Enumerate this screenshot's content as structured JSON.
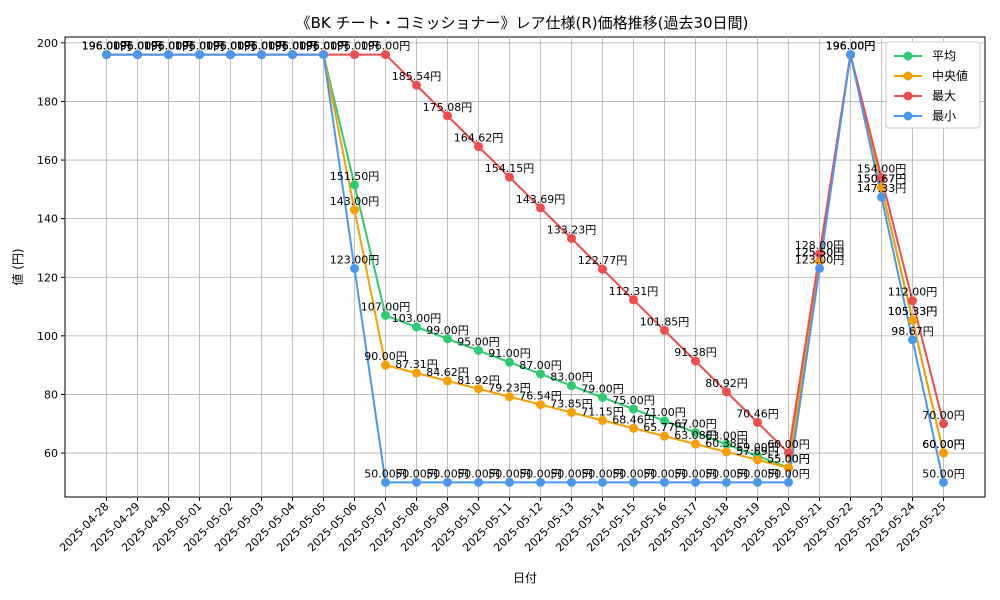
{
  "chart_data": {
    "type": "line",
    "title": "《BK チート・コミッショナー》レア仕様(R)価格推移(過去30日間)",
    "xlabel": "日付",
    "ylabel": "値 (円)",
    "ylim": [
      45,
      202
    ],
    "yticks": [
      60,
      80,
      100,
      120,
      140,
      160,
      180,
      200
    ],
    "grid": true,
    "legend_position": "top-right",
    "label_suffix": "円",
    "categories": [
      "2025-04-28",
      "2025-04-29",
      "2025-04-30",
      "2025-05-01",
      "2025-05-02",
      "2025-05-03",
      "2025-05-04",
      "2025-05-05",
      "2025-05-06",
      "2025-05-07",
      "2025-05-08",
      "2025-05-09",
      "2025-05-10",
      "2025-05-11",
      "2025-05-12",
      "2025-05-13",
      "2025-05-14",
      "2025-05-15",
      "2025-05-16",
      "2025-05-17",
      "2025-05-18",
      "2025-05-19",
      "2025-05-20",
      "2025-05-21",
      "2025-05-22",
      "2025-05-23",
      "2025-05-24",
      "2025-05-25"
    ],
    "series": [
      {
        "name": "平均",
        "color": "#2ecc71",
        "values": [
          196,
          196,
          196,
          196,
          196,
          196,
          196,
          196,
          151.5,
          107,
          103,
          99,
          95,
          91,
          87,
          83,
          79,
          75,
          71,
          67,
          63,
          59,
          55,
          125.5,
          196,
          150.67,
          105.33,
          60
        ]
      },
      {
        "name": "中央値",
        "color": "#f5a000",
        "values": [
          196,
          196,
          196,
          196,
          196,
          196,
          196,
          196,
          143,
          90,
          87.31,
          84.62,
          81.92,
          79.23,
          76.54,
          73.85,
          71.15,
          68.46,
          65.77,
          63.08,
          60.38,
          57.69,
          55,
          125.5,
          196,
          150.67,
          105.33,
          60
        ]
      },
      {
        "name": "最大",
        "color": "#ef4c4c",
        "values": [
          196,
          196,
          196,
          196,
          196,
          196,
          196,
          196,
          196,
          196,
          185.54,
          175.08,
          164.62,
          154.15,
          143.69,
          133.23,
          122.77,
          112.31,
          101.85,
          91.38,
          80.92,
          70.46,
          60,
          128,
          196,
          154,
          112,
          70
        ]
      },
      {
        "name": "最小",
        "color": "#4a97f0",
        "values": [
          196,
          196,
          196,
          196,
          196,
          196,
          196,
          196,
          123,
          50,
          50,
          50,
          50,
          50,
          50,
          50,
          50,
          50,
          50,
          50,
          50,
          50,
          50,
          123,
          196,
          147.33,
          98.67,
          50
        ]
      }
    ]
  }
}
